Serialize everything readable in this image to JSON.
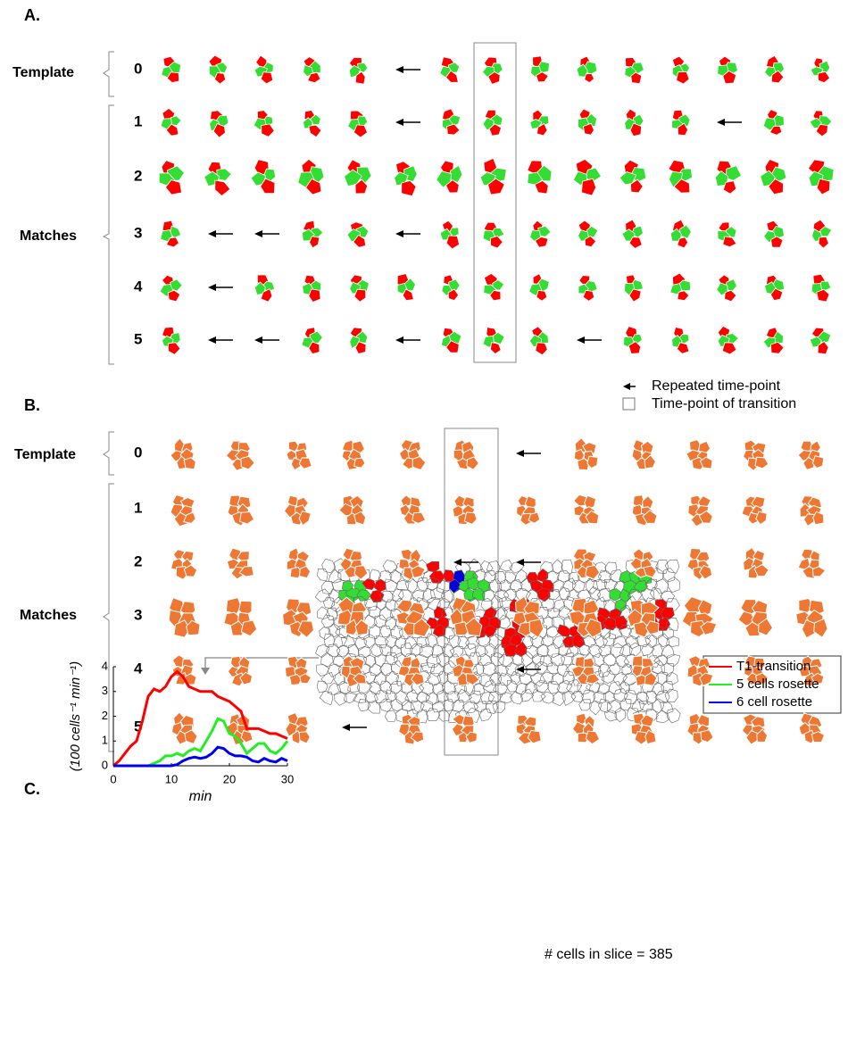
{
  "panel_a": {
    "label": "A.",
    "template_label": "Template",
    "matches_label": "Matches",
    "rows": [
      "0",
      "1",
      "2",
      "3",
      "4",
      "5"
    ]
  },
  "panel_b": {
    "label": "B.",
    "template_label": "Template",
    "matches_label": "Matches",
    "rows": [
      "0",
      "1",
      "2",
      "3",
      "4",
      "5"
    ]
  },
  "legend": {
    "arrow": "Repeated time-point",
    "box": "Time-point of transition"
  },
  "panel_c": {
    "label": "C.",
    "caption": "# cells in slice = 385"
  },
  "chart_data": {
    "type": "line",
    "x": [
      0,
      1,
      2,
      3,
      4,
      5,
      6,
      7,
      8,
      9,
      10,
      11,
      12,
      13,
      14,
      15,
      16,
      17,
      18,
      19,
      20,
      21,
      22,
      23,
      24,
      25,
      26,
      27,
      28,
      29,
      30
    ],
    "series": [
      {
        "name": "T1-transition",
        "color": "#ff0000",
        "values": [
          0,
          0.2,
          0.5,
          0.8,
          1,
          1.8,
          2.8,
          3.1,
          3.0,
          3.2,
          3.6,
          3.8,
          3.6,
          3.2,
          3.1,
          3.0,
          3.0,
          3.0,
          2.8,
          2.7,
          2.6,
          2.4,
          2.2,
          1.5,
          1.5,
          1.5,
          1.4,
          1.3,
          1.3,
          1.2,
          1.1
        ]
      },
      {
        "name": "5 cells rosette",
        "color": "#22ee22",
        "values": [
          0,
          0,
          0,
          0,
          0,
          0,
          0,
          0.1,
          0.2,
          0.4,
          0.4,
          0.5,
          0.4,
          0.6,
          0.7,
          0.6,
          1.0,
          1.4,
          1.9,
          1.8,
          1.3,
          1.2,
          0.9,
          0.5,
          0.7,
          0.9,
          0.9,
          0.6,
          0.5,
          0.7,
          1.0
        ]
      },
      {
        "name": "6 cell rosette",
        "color": "#0000ee",
        "values": [
          0,
          0,
          0,
          0,
          0,
          0,
          0,
          0,
          0,
          0,
          0,
          0.05,
          0.2,
          0.3,
          0.35,
          0.3,
          0.35,
          0.5,
          0.75,
          0.7,
          0.5,
          0.4,
          0.4,
          0.35,
          0.2,
          0.15,
          0.3,
          0.2,
          0.15,
          0.3,
          0.2
        ]
      }
    ],
    "xlabel": "min",
    "ylabel": "(100 cells⁻¹ min⁻¹)",
    "xlim": [
      0,
      30
    ],
    "xticks": [
      0,
      10,
      20,
      30
    ],
    "ylim": [
      0,
      4
    ],
    "yticks": [
      0,
      1,
      2,
      3,
      4
    ]
  }
}
